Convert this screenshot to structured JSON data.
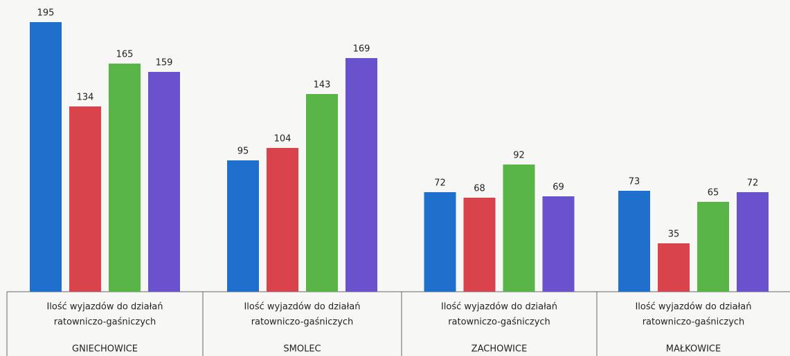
{
  "chart_data": {
    "type": "bar",
    "categories": [
      "GNIECHOWICE",
      "SMOLEC",
      "ZACHOWICE",
      "MAŁKOWICE"
    ],
    "category_lines": [
      [
        "Ilość wyjazdów do działań",
        "ratowniczo-gaśniczych"
      ],
      [
        "Ilość wyjazdów do działań",
        "ratowniczo-gaśniczych"
      ],
      [
        "Ilość wyjazdów do działań",
        "ratowniczo-gaśniczych"
      ],
      [
        "Ilość wyjazdów do działań",
        "ratowniczo-gaśniczych"
      ]
    ],
    "series": [
      {
        "color": "#1f6fcc",
        "values": [
          195,
          95,
          72,
          73
        ]
      },
      {
        "color": "#d9434b",
        "values": [
          134,
          104,
          68,
          35
        ]
      },
      {
        "color": "#5ab548",
        "values": [
          165,
          143,
          92,
          65
        ]
      },
      {
        "color": "#6a52cc",
        "values": [
          159,
          169,
          69,
          72
        ]
      }
    ],
    "ylim": [
      0,
      200
    ]
  }
}
